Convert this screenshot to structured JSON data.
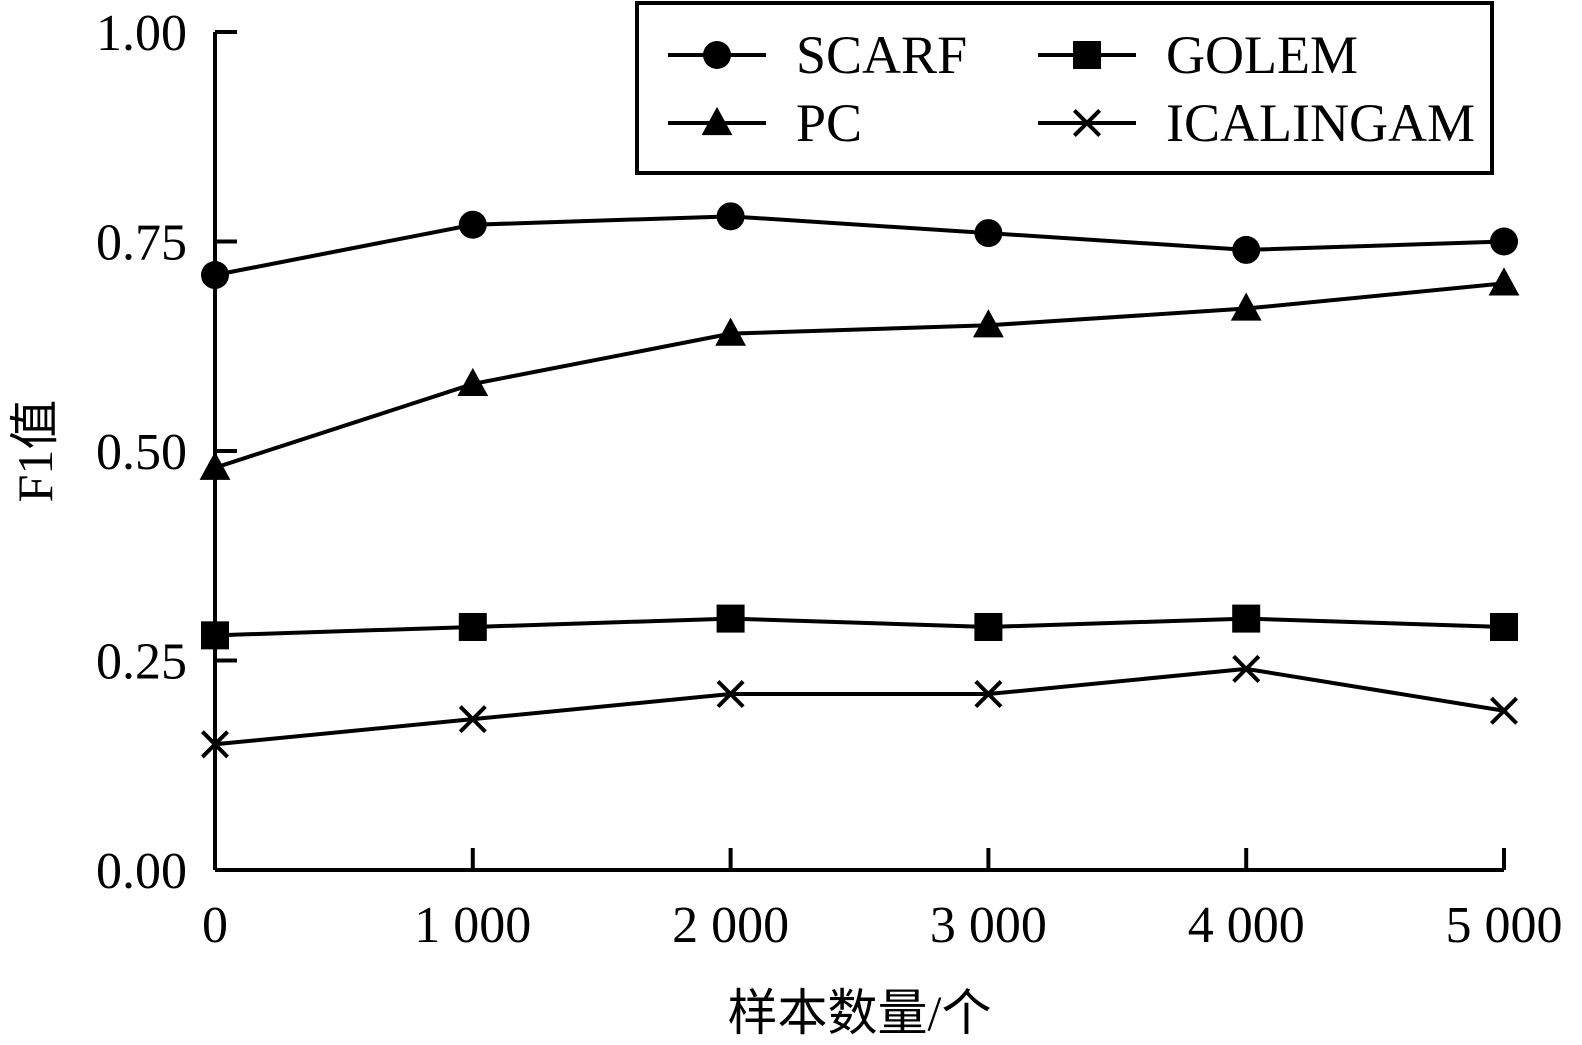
{
  "chart_data": {
    "type": "line",
    "xlabel": "样本数量/个",
    "ylabel": "F1值",
    "x": [
      0,
      1000,
      2000,
      3000,
      4000,
      5000
    ],
    "x_tick_labels": [
      "0",
      "1 000",
      "2 000",
      "3 000",
      "4 000",
      "5 000"
    ],
    "y_ticks": [
      0.0,
      0.25,
      0.5,
      0.75,
      1.0
    ],
    "y_tick_labels": [
      "0.00",
      "0.25",
      "0.50",
      "0.75",
      "1.00"
    ],
    "xlim": [
      0,
      5000
    ],
    "ylim": [
      0,
      1
    ],
    "grid": false,
    "legend_position": "top-right",
    "series": [
      {
        "name": "SCARF",
        "marker": "circle",
        "values": [
          0.71,
          0.77,
          0.78,
          0.76,
          0.74,
          0.75
        ]
      },
      {
        "name": "GOLEM",
        "marker": "square",
        "values": [
          0.28,
          0.29,
          0.3,
          0.29,
          0.3,
          0.29
        ]
      },
      {
        "name": "PC",
        "marker": "triangle",
        "values": [
          0.48,
          0.58,
          0.64,
          0.65,
          0.67,
          0.7
        ]
      },
      {
        "name": "ICALINGAM",
        "marker": "x",
        "values": [
          0.15,
          0.18,
          0.21,
          0.21,
          0.24,
          0.19
        ]
      }
    ],
    "colors": {
      "line": "#000000",
      "marker": "#000000",
      "background": "#ffffff"
    }
  }
}
